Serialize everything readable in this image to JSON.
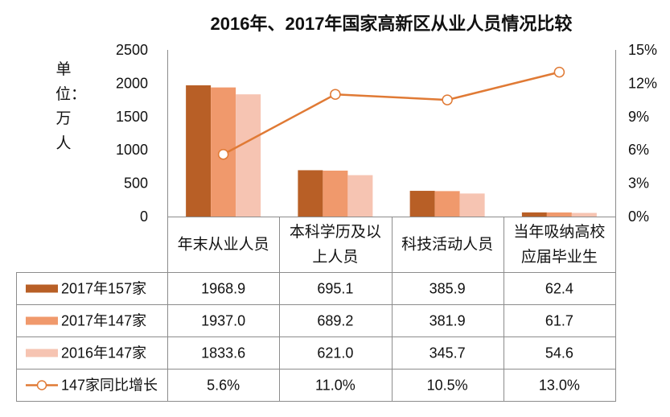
{
  "chart_data": {
    "type": "bar",
    "title": "2016年、2017年国家高新区从业人员情况比较",
    "ylabel": "单位：万人",
    "categories": [
      "年末从业人员",
      "本科学历及以上人员",
      "科技活动人员",
      "当年吸纳高校应届毕业生"
    ],
    "ylim": [
      0,
      2500
    ],
    "yticks": [
      0,
      500,
      1000,
      1500,
      2000,
      2500
    ],
    "y2lim": [
      0,
      15
    ],
    "y2ticks": [
      0,
      3,
      6,
      9,
      12,
      15
    ],
    "y2_unit": "%",
    "grid": false,
    "legend": "data-table",
    "series": [
      {
        "name": "2017年157家",
        "type": "bar",
        "axis": "left",
        "color": "#B85F26",
        "values": [
          1968.9,
          695.1,
          385.9,
          62.4
        ]
      },
      {
        "name": "2017年147家",
        "type": "bar",
        "axis": "left",
        "color": "#F0996C",
        "values": [
          1937.0,
          689.2,
          381.9,
          61.7
        ]
      },
      {
        "name": "2016年147家",
        "type": "bar",
        "axis": "left",
        "color": "#F6C4B2",
        "values": [
          1833.6,
          621.0,
          345.7,
          54.6
        ]
      },
      {
        "name": "147家同比增长",
        "type": "line",
        "axis": "right",
        "unit": "%",
        "color": "#E07A35",
        "values": [
          5.6,
          11.0,
          10.5,
          13.0
        ]
      }
    ]
  }
}
